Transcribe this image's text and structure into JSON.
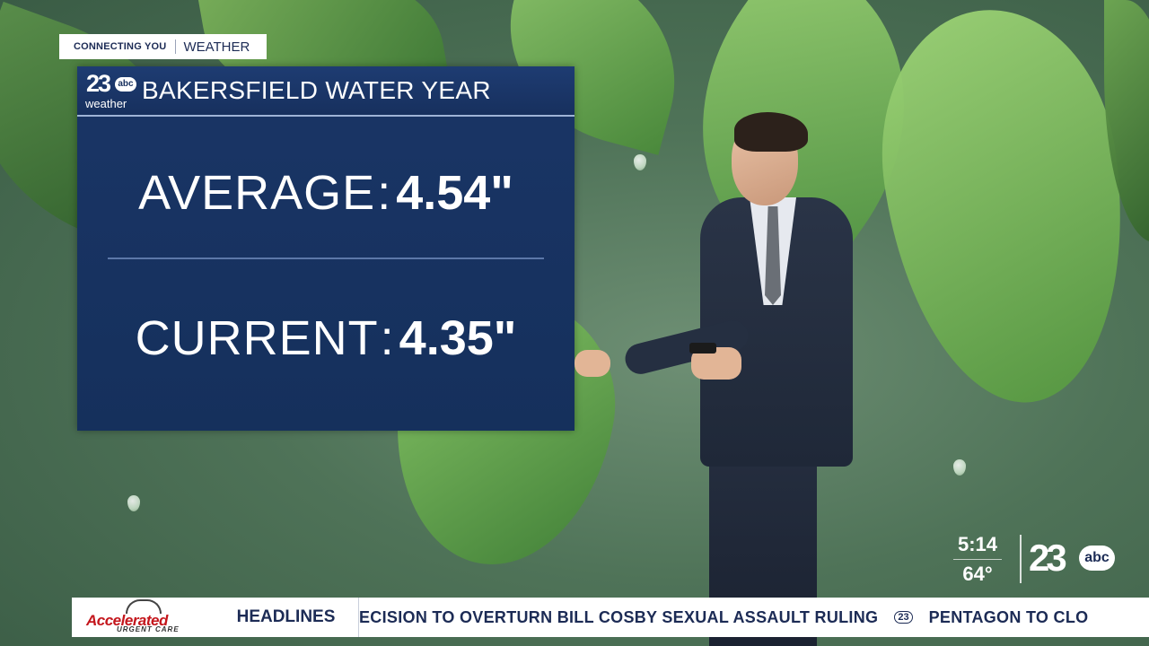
{
  "tag": {
    "primary": "CONNECTING YOU",
    "secondary": "WEATHER"
  },
  "board": {
    "logo_number": "23",
    "logo_network": "abc",
    "logo_sub": "weather",
    "title": "BAKERSFIELD WATER YEAR",
    "average_label": "AVERAGE",
    "average_value": "4.54\"",
    "current_label": "CURRENT",
    "current_value": "4.35\""
  },
  "status": {
    "time": "5:14",
    "temperature": "64°"
  },
  "station_logo": {
    "number": "23",
    "network": "abc"
  },
  "ticker": {
    "sponsor_name": "Accelerated",
    "sponsor_sub": "URGENT CARE",
    "section_label": "HEADLINES",
    "story_1": "ECISION TO OVERTURN BILL COSBY SEXUAL ASSAULT RULING",
    "separator_logo": "23",
    "story_2": "PENTAGON TO CLO"
  }
}
